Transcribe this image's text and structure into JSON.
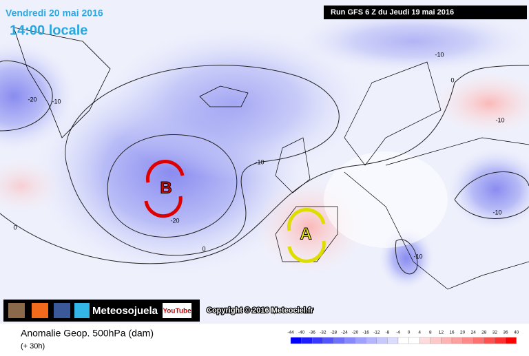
{
  "header": {
    "date": "Vendredi 20 mai 2016",
    "time": "14:00 locale",
    "run": "Run GFS 6 Z du Jeudi 19 mai 2016"
  },
  "pressure_systems": {
    "low": "B",
    "high": "A"
  },
  "contour_labels": [
    -20,
    -10,
    -10,
    0,
    -10,
    -10,
    -20,
    0,
    0,
    -10,
    -10
  ],
  "branding": {
    "name": "Meteosojuela",
    "video": "YouTube",
    "copyright": "Copyright © 2016 Meteociel.fr"
  },
  "footer": {
    "title": "Anomalie Geop. 500hPa (dam)",
    "lead": "(+ 30h)"
  },
  "scale": {
    "ticks": [
      -44,
      -40,
      -36,
      -32,
      -28,
      -24,
      -20,
      -16,
      -12,
      -8,
      -4,
      0,
      4,
      8,
      12,
      16,
      20,
      24,
      28,
      32,
      36,
      40
    ],
    "colors": [
      "#0000ff",
      "#1c1cff",
      "#3838ff",
      "#5454ff",
      "#7070ff",
      "#8888ff",
      "#a0a0ff",
      "#b4b4ff",
      "#c8c8ff",
      "#dcdcff",
      "#ffffff",
      "#ffffff",
      "#ffdcdc",
      "#ffc8c8",
      "#ffb4b4",
      "#ffa0a0",
      "#ff8888",
      "#ff7070",
      "#ff5050",
      "#ff3030",
      "#ff0000"
    ]
  }
}
